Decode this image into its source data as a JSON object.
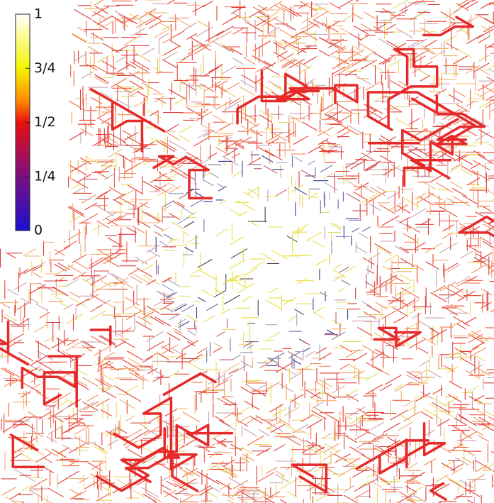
{
  "colorbar": {
    "range": [
      0,
      1
    ],
    "ticks": [
      0,
      {
        "value": 0.25,
        "label": "1/4"
      },
      {
        "value": 0.5,
        "label": "1/2"
      },
      {
        "value": 0.75,
        "label": "3/4"
      },
      1
    ]
  }
}
